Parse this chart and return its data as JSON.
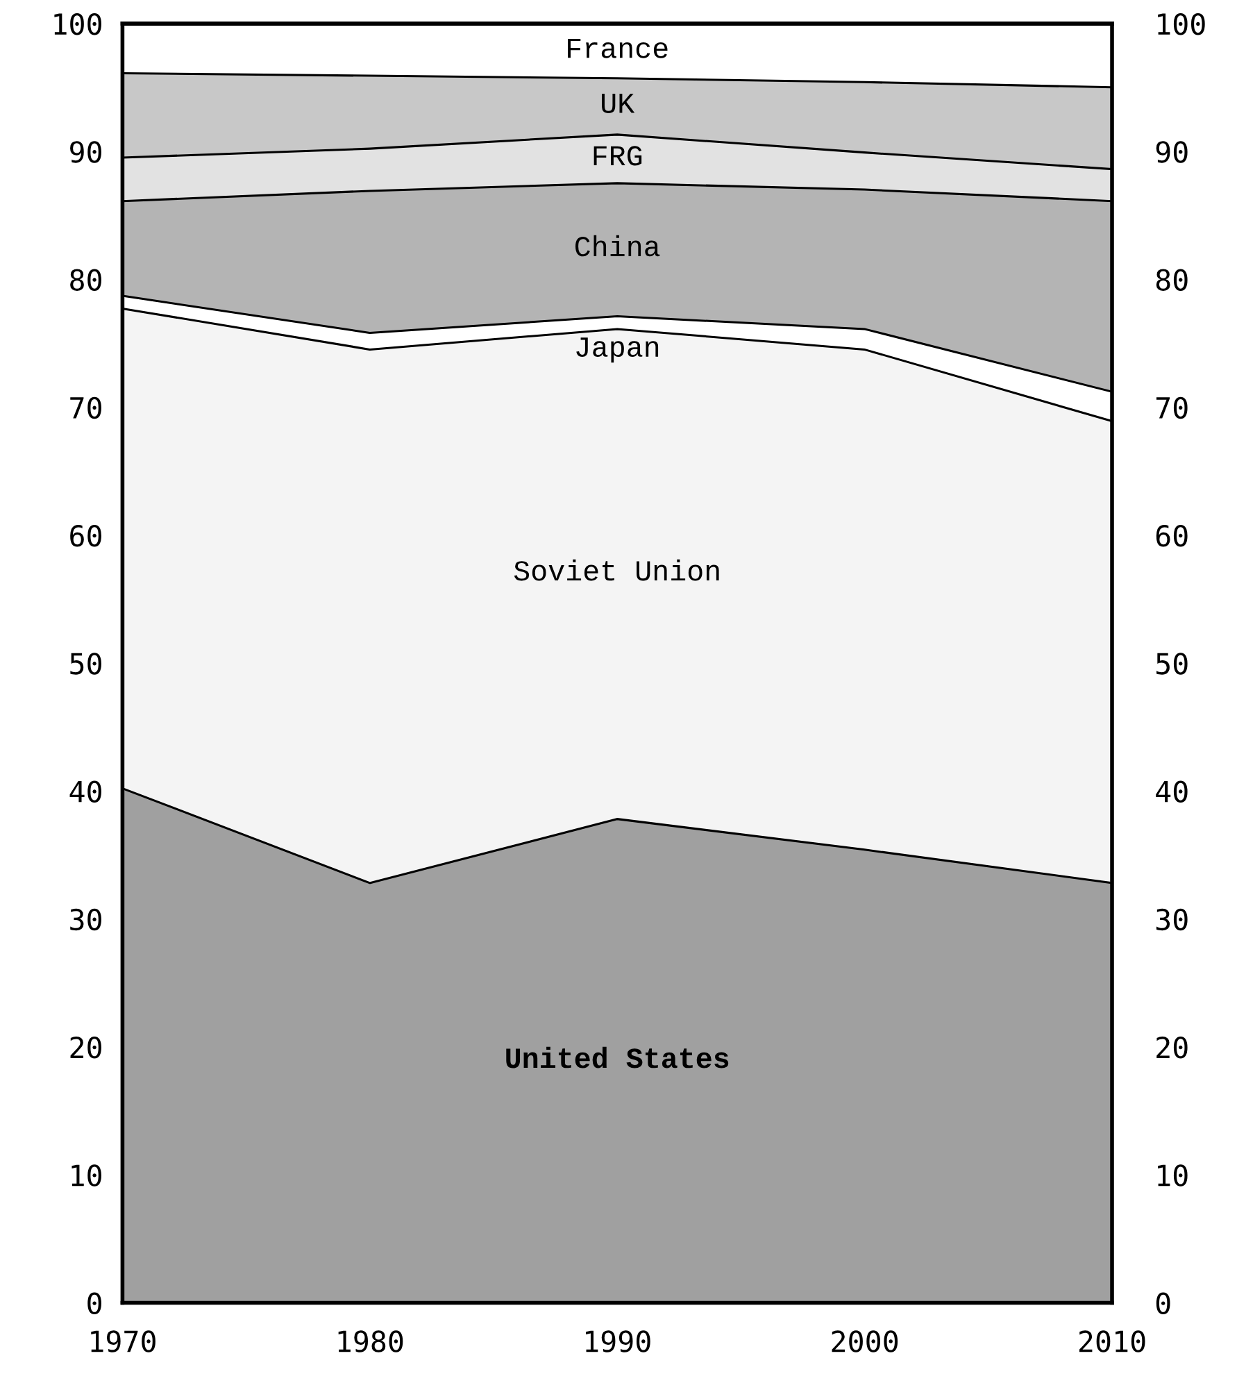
{
  "chart_data": {
    "type": "area",
    "stacked": true,
    "x": [
      1970,
      1980,
      1990,
      2000,
      2010
    ],
    "series": [
      {
        "name": "United States",
        "color": "#a0a0a0",
        "values": [
          40.3,
          32.9,
          37.9,
          35.5,
          32.9
        ]
      },
      {
        "name": "Soviet Union",
        "color": "#f4f4f4",
        "values": [
          37.5,
          41.7,
          38.3,
          39.1,
          36.1
        ]
      },
      {
        "name": "Japan",
        "color": "#ffffff",
        "values": [
          1.0,
          1.3,
          1.0,
          1.6,
          2.3
        ]
      },
      {
        "name": "China",
        "color": "#b4b4b4",
        "values": [
          7.4,
          11.1,
          10.4,
          10.9,
          14.9
        ]
      },
      {
        "name": "FRG",
        "color": "#e2e2e2",
        "values": [
          3.4,
          3.3,
          3.8,
          2.9,
          2.5
        ]
      },
      {
        "name": "UK",
        "color": "#c8c8c8",
        "values": [
          6.6,
          5.7,
          4.4,
          5.5,
          6.4
        ]
      },
      {
        "name": "France",
        "color": "#ffffff",
        "values": [
          3.8,
          4.0,
          4.2,
          4.5,
          4.9
        ]
      }
    ],
    "xlim": [
      1970,
      2010
    ],
    "xticks": [
      1970,
      1980,
      1990,
      2000,
      2010
    ],
    "ylim": [
      0,
      100
    ],
    "yticks": [
      0,
      10,
      20,
      30,
      40,
      50,
      60,
      70,
      80,
      90,
      100
    ],
    "y2lim": [
      0,
      100
    ],
    "y2ticks": [
      0,
      10,
      20,
      30,
      40,
      50,
      60,
      70,
      80,
      90,
      100
    ],
    "legend": false
  }
}
